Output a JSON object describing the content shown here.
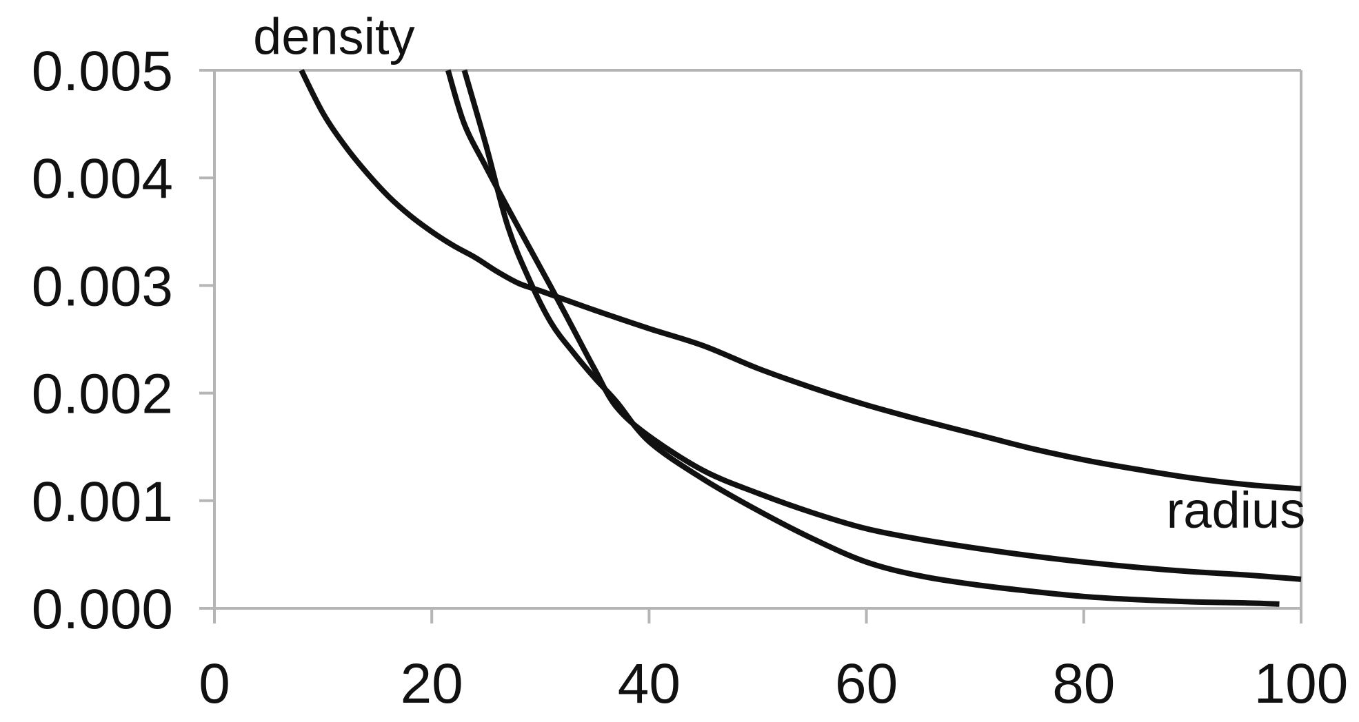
{
  "chart_data": {
    "type": "line",
    "title": "",
    "xlabel": "",
    "ylabel": "",
    "xlim": [
      0,
      100
    ],
    "ylim": [
      0,
      0.005
    ],
    "grid": false,
    "x_ticks": [
      "0",
      "20",
      "40",
      "60",
      "80",
      "100"
    ],
    "y_ticks": [
      "0.000",
      "0.001",
      "0.002",
      "0.003",
      "0.004",
      "0.005"
    ],
    "annotations": [
      {
        "text": "density",
        "x": 11,
        "y": 0.00515
      },
      {
        "text": "radius",
        "x": 94,
        "y": 0.00075
      }
    ],
    "colors": {
      "axis": "#b5b5b5",
      "line": "#111111"
    },
    "series": [
      {
        "x": [
          8,
          10,
          12,
          14,
          16,
          18,
          20,
          22,
          24,
          26,
          28,
          30,
          35,
          40,
          45,
          50,
          55,
          60,
          65,
          70,
          75,
          80,
          85,
          90,
          95,
          100
        ],
        "y": [
          0.005,
          0.0046,
          0.0043,
          0.00405,
          0.00383,
          0.00365,
          0.0035,
          0.00337,
          0.00326,
          0.00313,
          0.00302,
          0.00295,
          0.00277,
          0.0026,
          0.00244,
          0.00223,
          0.00205,
          0.00189,
          0.00175,
          0.00162,
          0.00149,
          0.00138,
          0.00129,
          0.00121,
          0.00115,
          0.00111
        ]
      },
      {
        "x": [
          21.5,
          23,
          25,
          27,
          29,
          31,
          33,
          35,
          37,
          40,
          45,
          50,
          55,
          60,
          65,
          70,
          75,
          80,
          85,
          90,
          95,
          100
        ],
        "y": [
          0.005,
          0.0045,
          0.0041,
          0.00372,
          0.00335,
          0.00298,
          0.0026,
          0.00222,
          0.00187,
          0.0016,
          0.00128,
          0.00107,
          0.00089,
          0.00074,
          0.00064,
          0.00056,
          0.00049,
          0.00043,
          0.00038,
          0.00034,
          0.00031,
          0.00027
        ]
      },
      {
        "x": [
          23,
          25,
          27,
          29,
          31,
          33,
          35,
          37,
          40,
          45,
          50,
          55,
          60,
          65,
          70,
          75,
          80,
          85,
          90,
          95,
          98
        ],
        "y": [
          0.005,
          0.0043,
          0.00355,
          0.00305,
          0.00265,
          0.00238,
          0.00214,
          0.00192,
          0.00155,
          0.0012,
          0.00091,
          0.00065,
          0.00043,
          0.0003,
          0.00022,
          0.00016,
          0.00011,
          8e-05,
          6e-05,
          5e-05,
          4e-05
        ]
      }
    ]
  }
}
